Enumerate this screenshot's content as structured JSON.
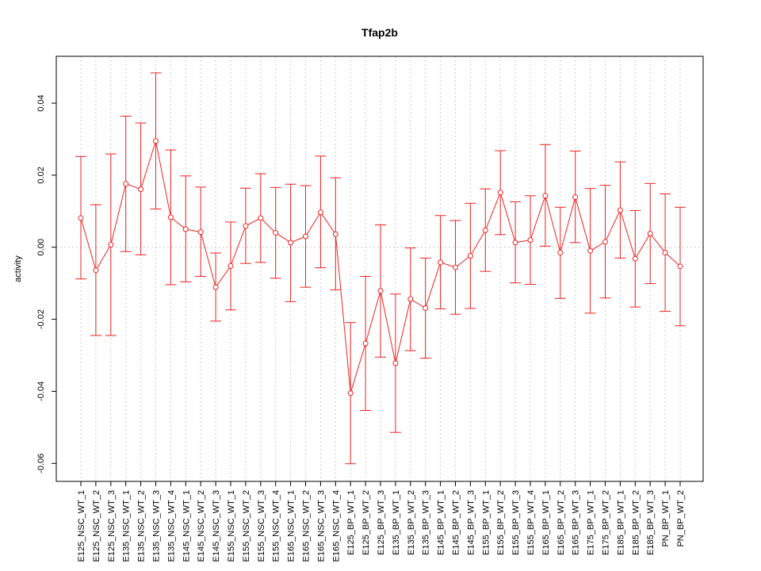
{
  "chart_data": {
    "type": "line",
    "title": "Tfap2b",
    "xlabel": "",
    "ylabel": "activity",
    "ylim": [
      -0.065,
      0.053
    ],
    "yticks": [
      -0.06,
      -0.04,
      -0.02,
      0.0,
      0.02,
      0.04
    ],
    "ytick_labels": [
      "-0.06",
      "-0.04",
      "-0.02",
      "0.00",
      "0.02",
      "0.04"
    ],
    "grid": true,
    "color": "#ee2222",
    "grid_color": "#cccccc",
    "categories": [
      "E125_NSC_WT_1",
      "E125_NSC_WT_2",
      "E125_NSC_WT_3",
      "E135_NSC_WT_1",
      "E135_NSC_WT_2",
      "E135_NSC_WT_3",
      "E135_NSC_WT_4",
      "E145_NSC_WT_1",
      "E145_NSC_WT_2",
      "E145_NSC_WT_3",
      "E155_NSC_WT_1",
      "E155_NSC_WT_2",
      "E155_NSC_WT_3",
      "E155_NSC_WT_4",
      "E165_NSC_WT_1",
      "E165_NSC_WT_2",
      "E165_NSC_WT_3",
      "E165_NSC_WT_4",
      "E125_BP_WT_1",
      "E125_BP_WT_2",
      "E125_BP_WT_3",
      "E135_BP_WT_1",
      "E135_BP_WT_2",
      "E135_BP_WT_3",
      "E145_BP_WT_1",
      "E145_BP_WT_2",
      "E145_BP_WT_3",
      "E155_BP_WT_1",
      "E155_BP_WT_2",
      "E155_BP_WT_3",
      "E155_BP_WT_4",
      "E165_BP_WT_1",
      "E165_BP_WT_2",
      "E165_BP_WT_3",
      "E175_BP_WT_1",
      "E175_BP_WT_2",
      "E185_BP_WT_1",
      "E185_BP_WT_2",
      "E185_BP_WT_3",
      "PN_BP_WT_1",
      "PN_BP_WT_2"
    ],
    "values": [
      0.0081,
      -0.0064,
      0.0007,
      0.0176,
      0.0161,
      0.0295,
      0.0083,
      0.005,
      0.0042,
      -0.0111,
      -0.0052,
      0.0059,
      0.0081,
      0.004,
      0.0013,
      0.003,
      0.0097,
      0.0036,
      -0.0405,
      -0.0267,
      -0.0121,
      -0.0322,
      -0.0144,
      -0.0169,
      -0.0042,
      -0.0056,
      -0.0024,
      0.0047,
      0.0152,
      0.0013,
      0.002,
      0.0143,
      -0.0015,
      0.0139,
      -0.001,
      0.0015,
      0.0103,
      -0.0032,
      0.0038,
      -0.0015,
      -0.0053
    ],
    "upper": [
      0.0252,
      0.0118,
      0.0259,
      0.0364,
      0.0345,
      0.0484,
      0.027,
      0.0198,
      0.0167,
      -0.0016,
      0.007,
      0.0164,
      0.0204,
      0.0166,
      0.0175,
      0.0171,
      0.0253,
      0.0193,
      -0.0209,
      -0.0081,
      0.0062,
      -0.013,
      -0.0002,
      -0.003,
      0.0088,
      0.0074,
      0.0122,
      0.0162,
      0.0268,
      0.0126,
      0.0143,
      0.0285,
      0.0111,
      0.0267,
      0.0163,
      0.0172,
      0.0237,
      0.0102,
      0.0177,
      0.0148,
      0.0111
    ],
    "lower": [
      -0.0088,
      -0.0245,
      -0.0245,
      -0.0012,
      -0.0021,
      0.0106,
      -0.0104,
      -0.0096,
      -0.0081,
      -0.0205,
      -0.0174,
      -0.0045,
      -0.0042,
      -0.0086,
      -0.0151,
      -0.0111,
      -0.0057,
      -0.0118,
      -0.0601,
      -0.0453,
      -0.0305,
      -0.0514,
      -0.0287,
      -0.0308,
      -0.0171,
      -0.0186,
      -0.017,
      -0.0067,
      0.0035,
      -0.0099,
      -0.0103,
      0.0003,
      -0.0142,
      0.0013,
      -0.0183,
      -0.0141,
      -0.003,
      -0.0166,
      -0.0101,
      -0.0178,
      -0.0218
    ]
  }
}
